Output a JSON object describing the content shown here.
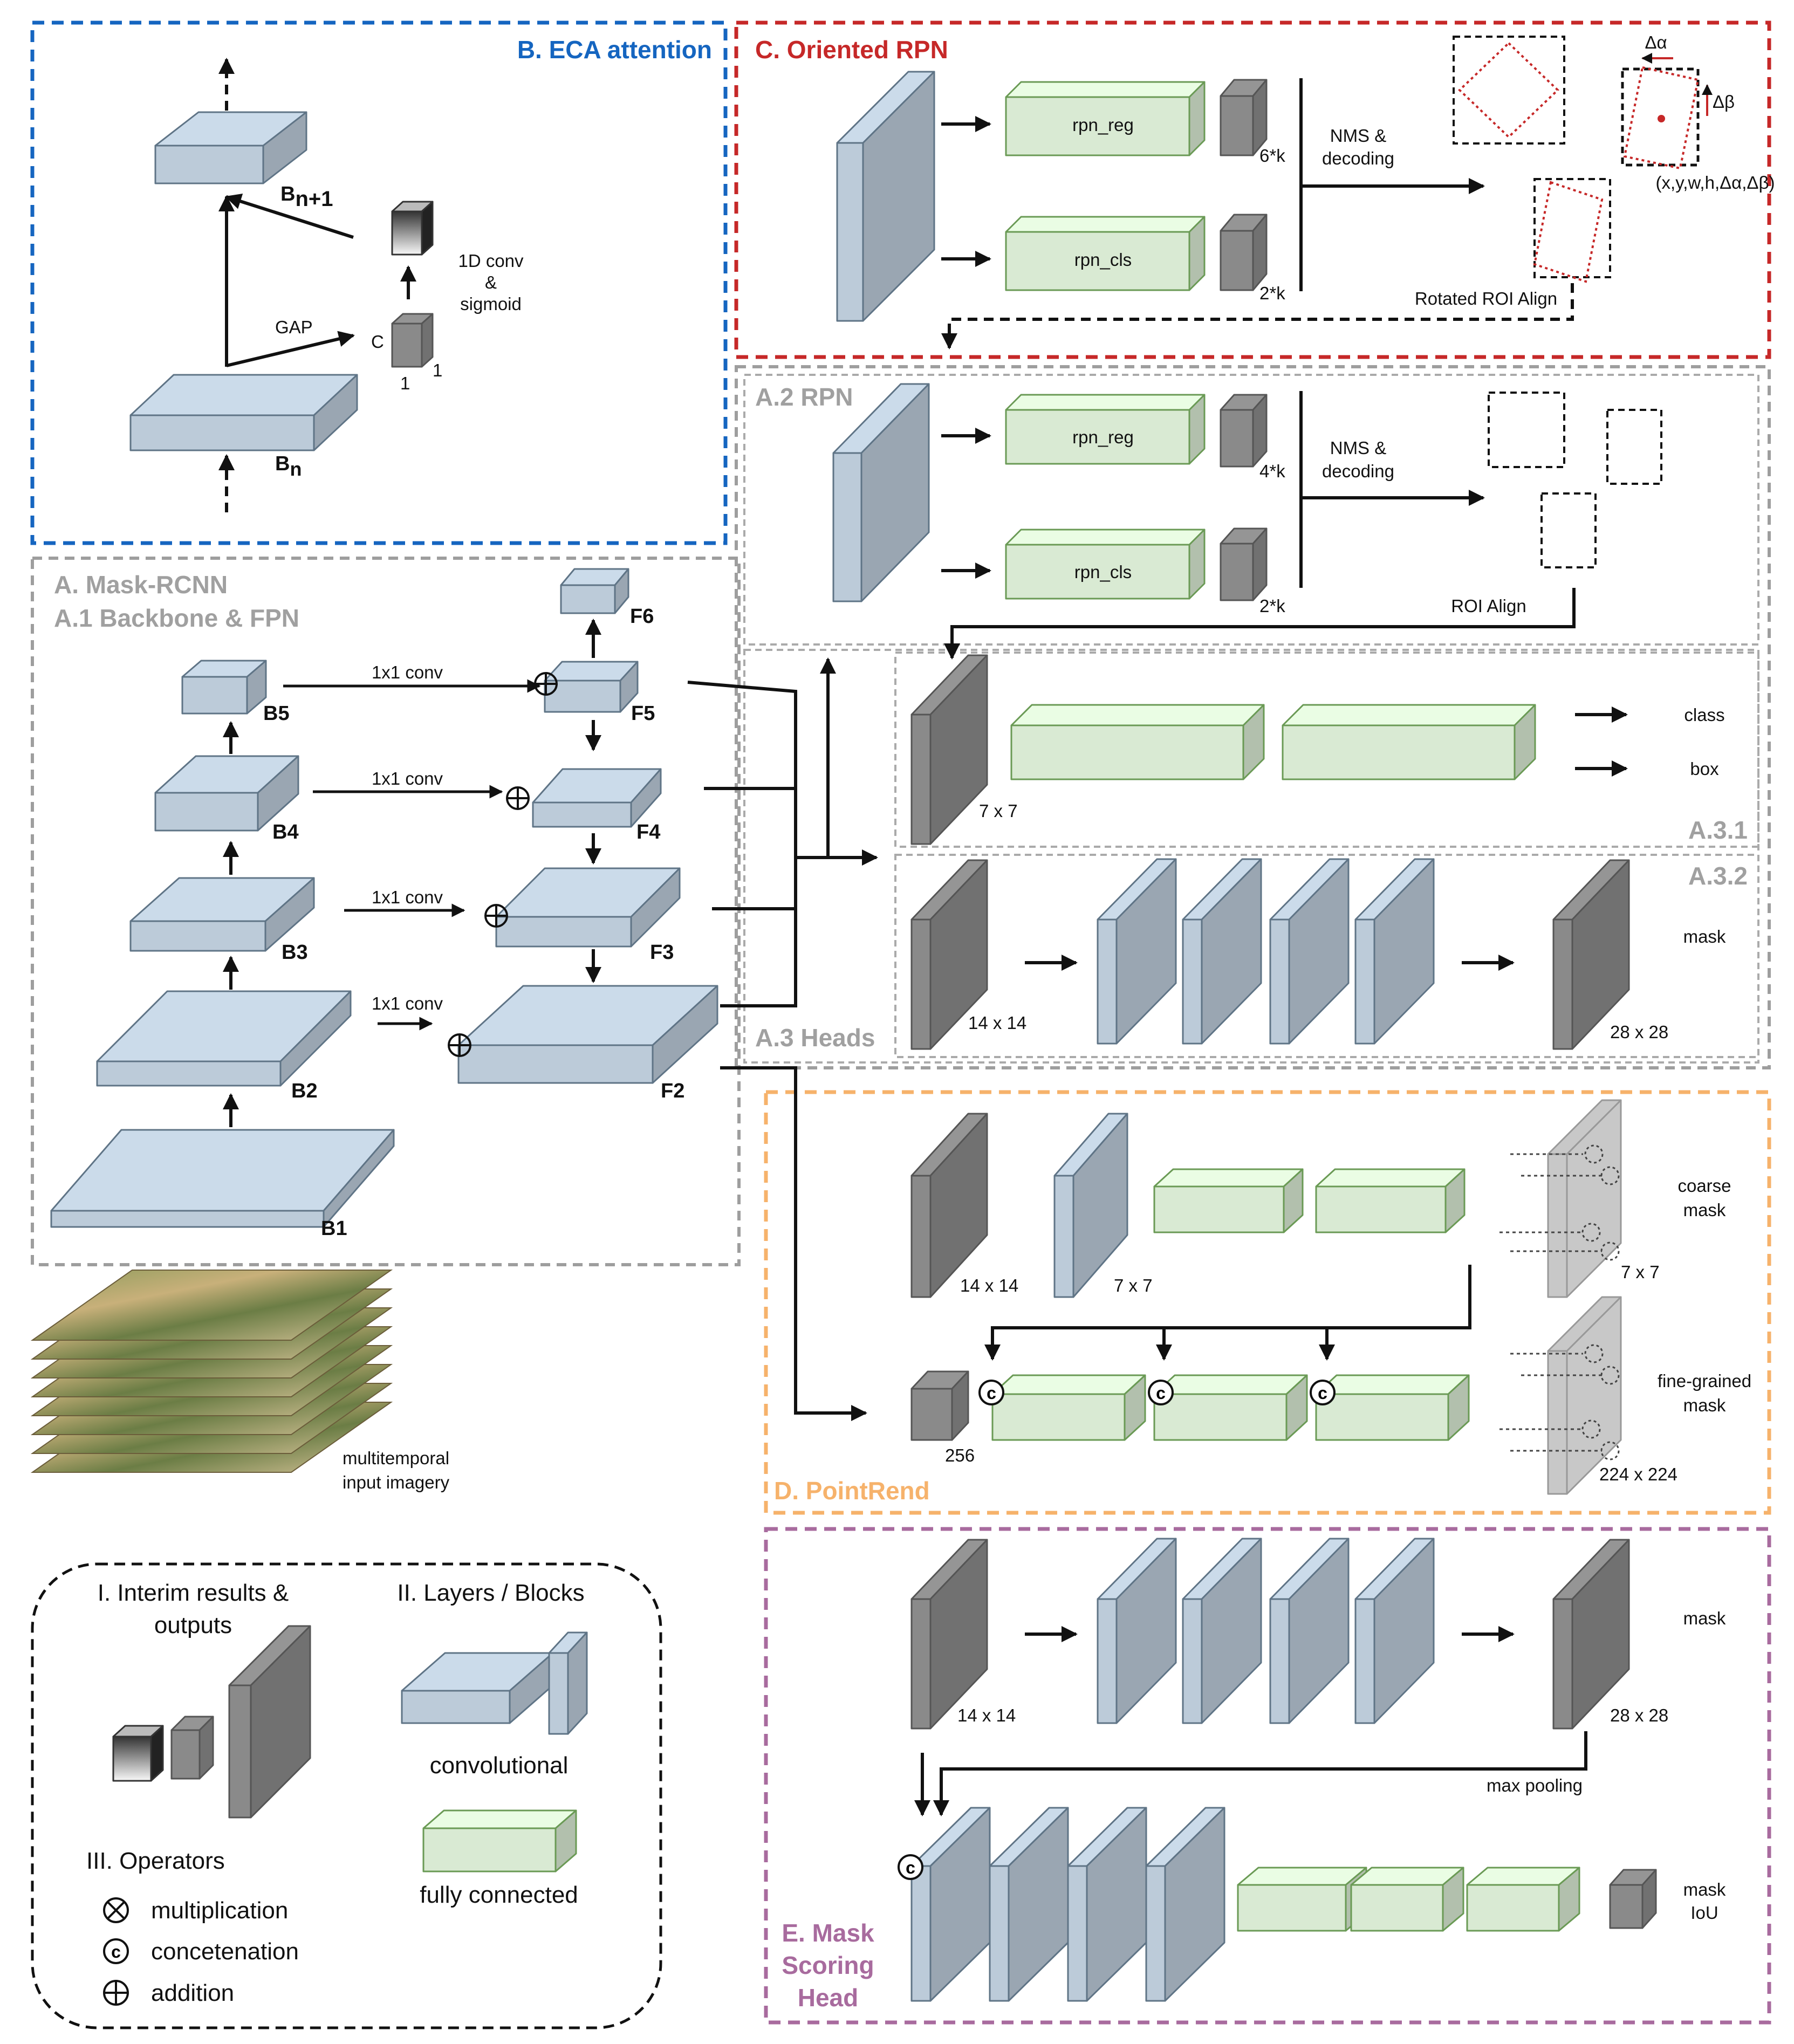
{
  "sections": {
    "eca": {
      "title": "B. ECA attention",
      "color": "#1565c0"
    },
    "orpn": {
      "title": "C. Oriented RPN",
      "color": "#c62828"
    },
    "mask_rcnn": {
      "title": "A. Mask-RCNN",
      "subtitle": "A.1 Backbone & FPN",
      "color": "#9e9e9e"
    },
    "rpn": {
      "title": "A.2 RPN"
    },
    "heads": {
      "title": "A.3 Heads",
      "sub1": "A.3.1",
      "sub2": "A.3.2"
    },
    "pointrend": {
      "title": "D. PointRend",
      "color": "#f6b26b"
    },
    "msh": {
      "title_lines": [
        "E. Mask",
        "Scoring",
        "Head"
      ],
      "color": "#a86b9e"
    }
  },
  "eca": {
    "bn1_main": "B",
    "bn1_sub": "n+1",
    "bn_main": "B",
    "bn_sub": "n",
    "gap": "GAP",
    "c": "C",
    "one_a": "1",
    "one_b": "1",
    "conv_lines": [
      "1D conv",
      "&",
      "sigmoid"
    ]
  },
  "orpn": {
    "rpn_reg": "rpn_reg",
    "rpn_cls": "rpn_cls",
    "reg_size": "6*k",
    "cls_size": "2*k",
    "nms_lines": [
      "NMS &",
      "decoding"
    ],
    "roi_align": "Rotated ROI Align",
    "delta_a": "Δα",
    "delta_b": "Δβ",
    "params": "(x,y,w,h,Δα,Δβ)"
  },
  "rpn": {
    "rpn_reg": "rpn_reg",
    "rpn_cls": "rpn_cls",
    "reg_size": "4*k",
    "cls_size": "2*k",
    "nms_lines": [
      "NMS &",
      "decoding"
    ],
    "roi_align": "ROI Align"
  },
  "backbone": {
    "labels": {
      "b1": "B1",
      "b2": "B2",
      "b3": "B3",
      "b4": "B4",
      "b5": "B5",
      "f2": "F2",
      "f3": "F3",
      "f4": "F4",
      "f5": "F5",
      "f6": "F6"
    },
    "conv": "1x1 conv"
  },
  "heads": {
    "size_7": "7 x 7",
    "class": "class",
    "box": "box",
    "size_14": "14 x 14",
    "size_28": "28 x 28",
    "mask": "mask"
  },
  "pointrend": {
    "size_14": "14 x 14",
    "size_7": "7 x 7",
    "coarse_lines": [
      "coarse",
      "mask"
    ],
    "coarse_size": "7 x 7",
    "size_256": "256",
    "fine_lines": [
      "fine-grained",
      "mask"
    ],
    "fine_size": "224 x 224"
  },
  "msh": {
    "size_14": "14 x 14",
    "size_28": "28 x 28",
    "mask": "mask",
    "max_pooling": "max pooling",
    "iou_lines": [
      "mask",
      "IoU"
    ]
  },
  "input": {
    "lines": [
      "multitemporal",
      "input imagery"
    ]
  },
  "legend": {
    "interim_lines": [
      "I. Interim results &",
      "outputs"
    ],
    "layers": "II. Layers / Blocks",
    "convolutional": "convolutional",
    "fully_connected": "fully connected",
    "operators": "III. Operators",
    "multiplication": "multiplication",
    "concatenation": "concetenation",
    "addition": "addition"
  },
  "colors": {
    "conv": "#bccbd9",
    "conv_stroke": "#5f7486",
    "fc": "#d9ead3",
    "fc_stroke": "#6a9a55",
    "dark": "#8a8a8a"
  }
}
